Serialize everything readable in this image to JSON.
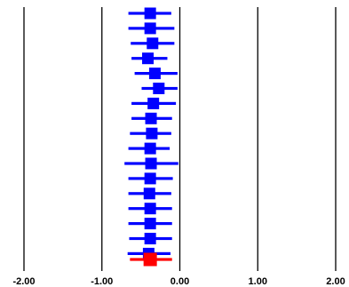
{
  "chart_data": {
    "type": "forest",
    "title": "",
    "xlabel": "",
    "ylabel": "",
    "xlim": [
      -2.0,
      2.0
    ],
    "x_ticks": [
      -2.0,
      -1.0,
      0.0,
      1.0,
      2.0
    ],
    "x_tick_labels": [
      "-2.00",
      "-1.00",
      "0.00",
      "1.00",
      "2.00"
    ],
    "vertical_gridlines": true,
    "colors": {
      "study": "#0000ff",
      "summary": "#ff0000",
      "gridline": "#000000"
    },
    "studies": [
      {
        "estimate": -0.38,
        "ci_low": -0.66,
        "ci_high": -0.11
      },
      {
        "estimate": -0.38,
        "ci_low": -0.66,
        "ci_high": -0.07
      },
      {
        "estimate": -0.35,
        "ci_low": -0.63,
        "ci_high": -0.07
      },
      {
        "estimate": -0.41,
        "ci_low": -0.62,
        "ci_high": -0.16
      },
      {
        "estimate": -0.32,
        "ci_low": -0.58,
        "ci_high": -0.03
      },
      {
        "estimate": -0.27,
        "ci_low": -0.49,
        "ci_high": -0.03
      },
      {
        "estimate": -0.34,
        "ci_low": -0.62,
        "ci_high": -0.05
      },
      {
        "estimate": -0.37,
        "ci_low": -0.62,
        "ci_high": -0.1
      },
      {
        "estimate": -0.36,
        "ci_low": -0.64,
        "ci_high": -0.11
      },
      {
        "estimate": -0.38,
        "ci_low": -0.66,
        "ci_high": -0.13
      },
      {
        "estimate": -0.37,
        "ci_low": -0.71,
        "ci_high": -0.02
      },
      {
        "estimate": -0.38,
        "ci_low": -0.66,
        "ci_high": -0.09
      },
      {
        "estimate": -0.39,
        "ci_low": -0.66,
        "ci_high": -0.11
      },
      {
        "estimate": -0.38,
        "ci_low": -0.66,
        "ci_high": -0.1
      },
      {
        "estimate": -0.38,
        "ci_low": -0.66,
        "ci_high": -0.1
      },
      {
        "estimate": -0.38,
        "ci_low": -0.65,
        "ci_high": -0.1
      },
      {
        "estimate": -0.4,
        "ci_low": -0.67,
        "ci_high": -0.12
      }
    ],
    "summary": {
      "estimate": -0.38,
      "ci_low": -0.64,
      "ci_high": -0.1
    }
  }
}
